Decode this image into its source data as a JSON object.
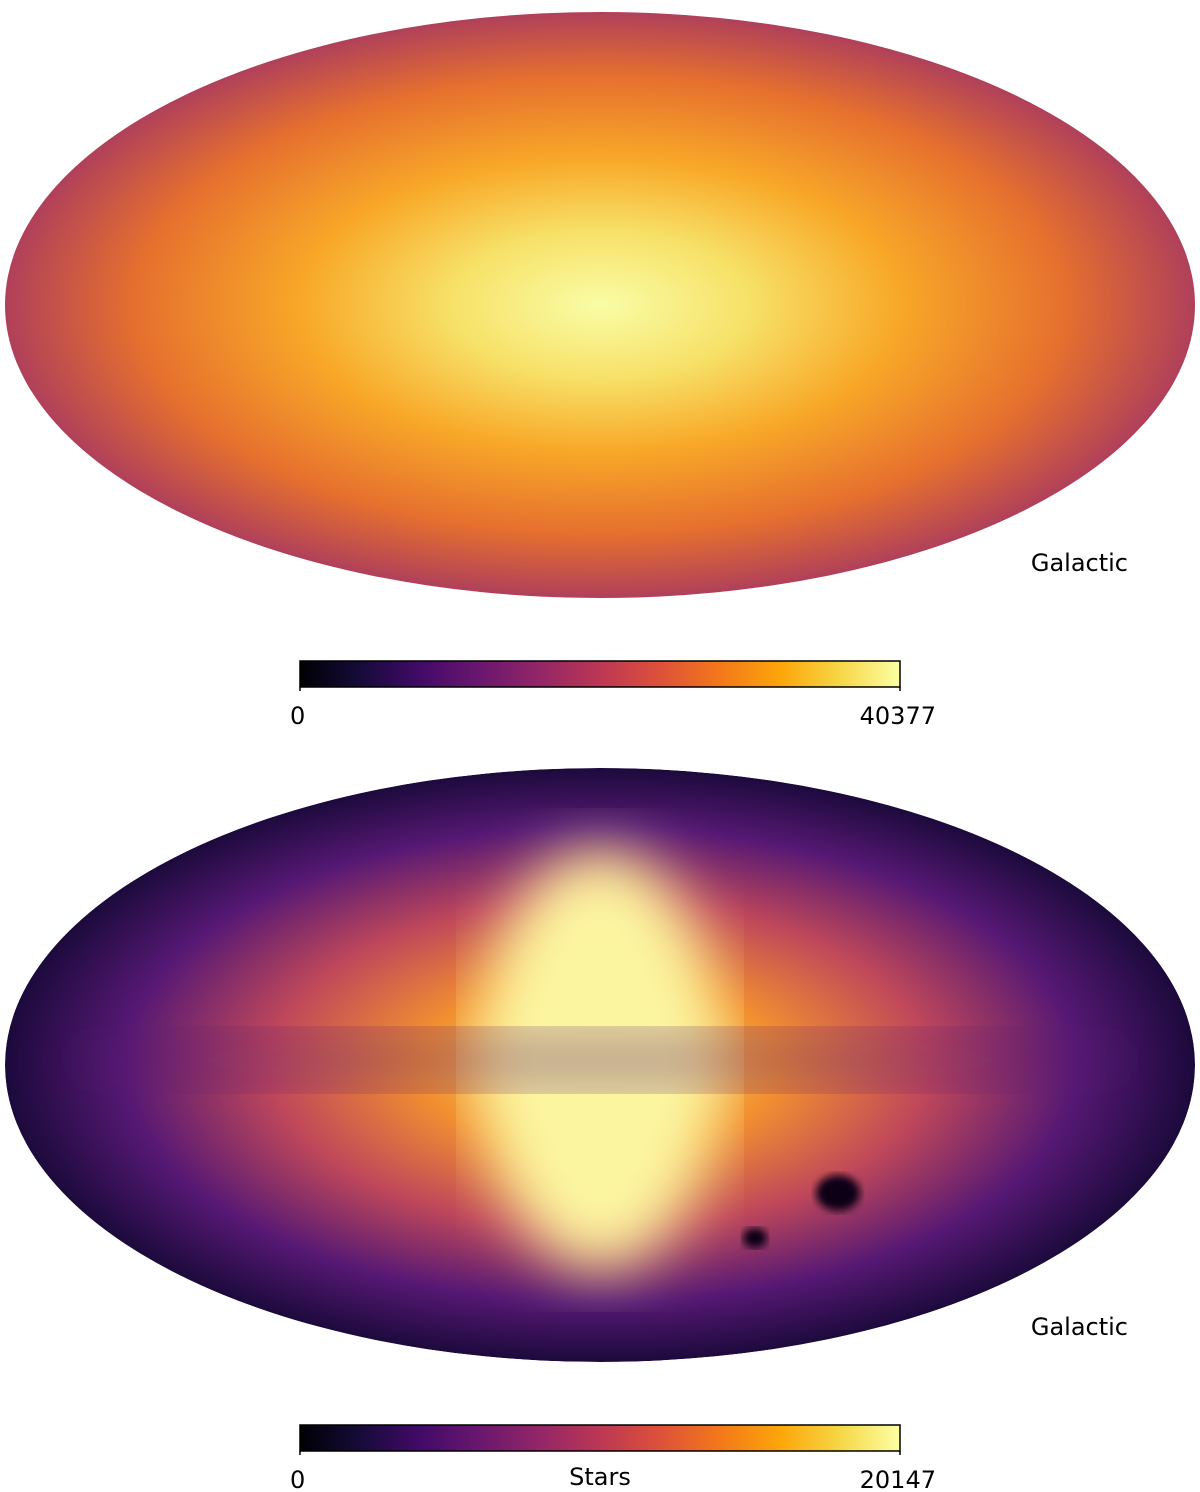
{
  "chart_data": [
    {
      "type": "mollweide",
      "coord": "Galactic",
      "colormap": "inferno",
      "colorbar": {
        "lim": [
          0,
          40377
        ],
        "ticks": [
          0,
          40377
        ]
      }
    },
    {
      "type": "mollweide",
      "coord": "Galactic",
      "colormap": "inferno",
      "colorbar": {
        "lim": [
          0,
          20147
        ],
        "ticks": [
          0,
          20147
        ],
        "label": "Stars"
      }
    }
  ]
}
